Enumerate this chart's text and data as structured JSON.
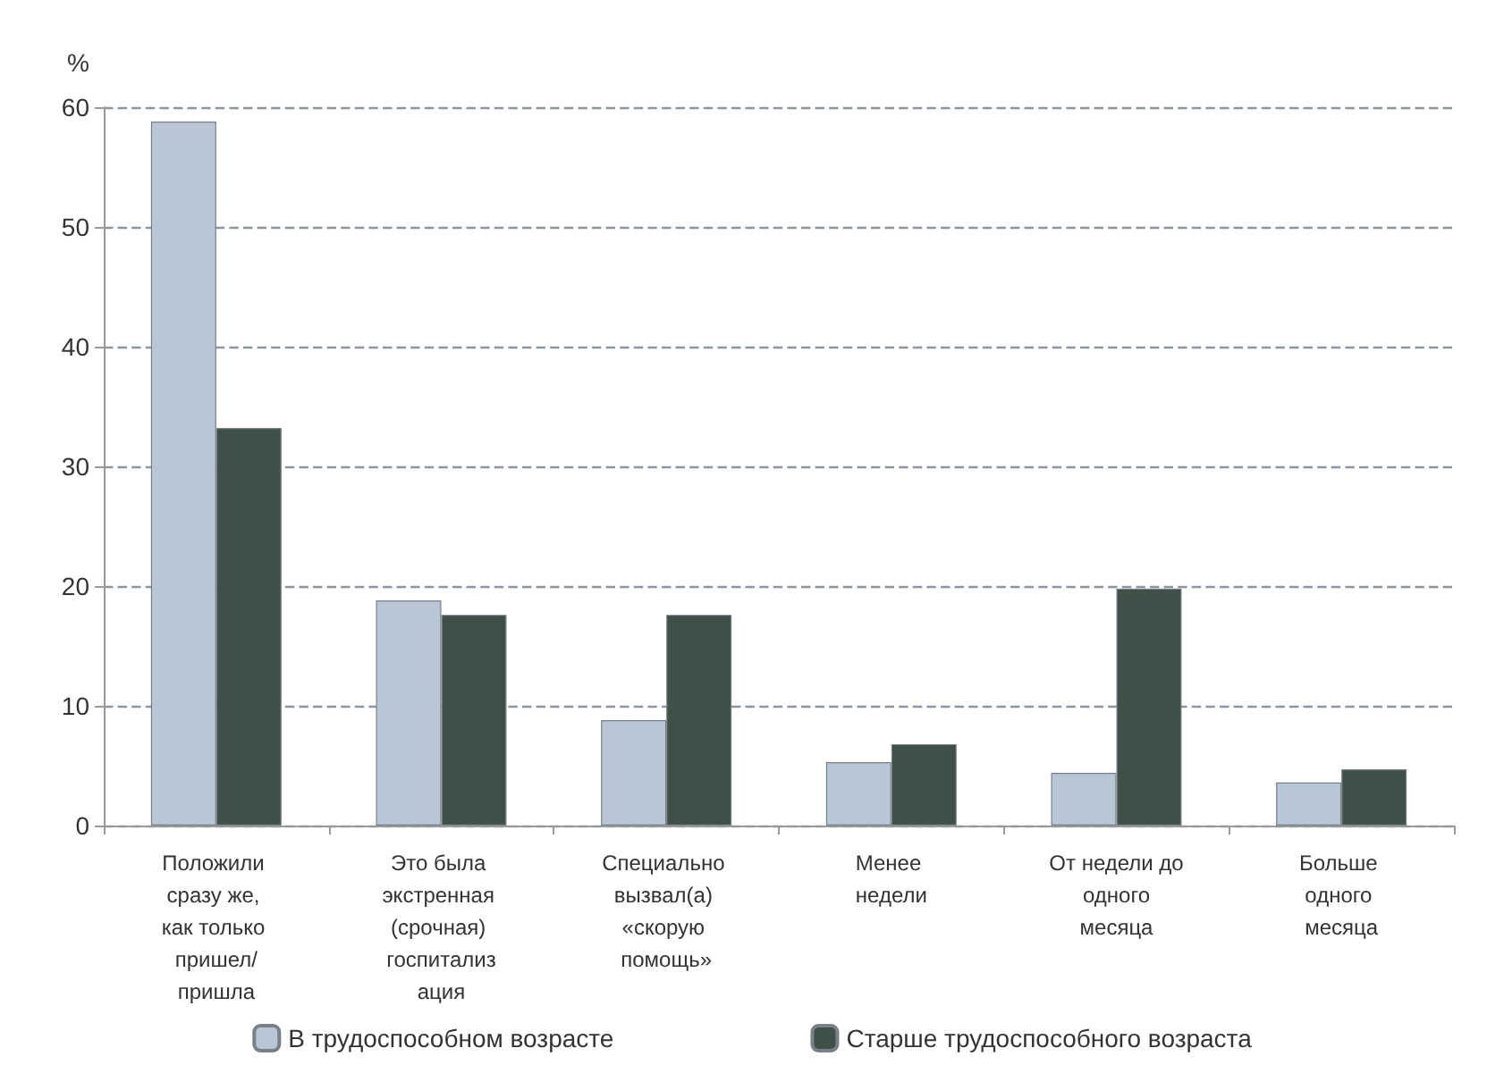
{
  "chart_data": {
    "type": "bar",
    "ylabel": "%",
    "categories": [
      "Положили сразу же, как только пришел/пришла",
      "Это была экстренная (срочная) госпитализация",
      "Специально вызвал(а) «скорую помощь»",
      "Менее недели",
      "От недели до одного месяца",
      "Больше одного месяца"
    ],
    "series": [
      {
        "name": "В трудоспособном возрасте",
        "color": "#b8c6d6",
        "values": [
          58.8,
          18.8,
          8.8,
          5.3,
          4.4,
          3.6
        ]
      },
      {
        "name": "Старше трудоспособного возраста",
        "color": "#3f5048",
        "values": [
          33.2,
          17.6,
          17.6,
          6.8,
          19.8,
          4.7
        ]
      }
    ],
    "ylim": [
      0,
      60
    ],
    "yticks": [
      0,
      10,
      20,
      30,
      40,
      50,
      60
    ],
    "grid": "y",
    "line_style": "dashed",
    "legend": "bottom"
  }
}
